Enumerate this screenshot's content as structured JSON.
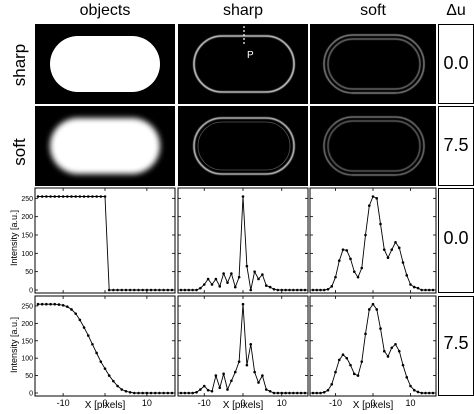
{
  "headers": {
    "objects": "objects",
    "sharp": "sharp",
    "soft": "soft",
    "delta_u": "Δu"
  },
  "row_labels": {
    "sharp": "sharp",
    "soft": "soft"
  },
  "image_marker": "P",
  "delta_u_values": [
    "0.0",
    "7.5",
    "0.0",
    "7.5"
  ],
  "axis": {
    "ylabel": "Intensity [a.u.]",
    "xlabel": "X [pixels]",
    "y_ticks": [
      "0",
      "50",
      "100",
      "150",
      "200",
      "250"
    ],
    "x_ticks": [
      "-10",
      "0",
      "10"
    ]
  },
  "chart_data": [
    {
      "type": "line",
      "panel": "objects-sharp-profile",
      "x": [
        -16,
        -15,
        -14,
        -13,
        -12,
        -11,
        -10,
        -9,
        -8,
        -7,
        -6,
        -5,
        -4,
        -3,
        -2,
        -1,
        0,
        1,
        2,
        3,
        4,
        5,
        6,
        7,
        8,
        9,
        10,
        11,
        12,
        13,
        14,
        15,
        16
      ],
      "y": [
        255,
        255,
        255,
        255,
        255,
        255,
        255,
        255,
        255,
        255,
        255,
        255,
        255,
        255,
        255,
        255,
        255,
        0,
        0,
        0,
        0,
        0,
        0,
        0,
        0,
        0,
        0,
        0,
        0,
        0,
        0,
        0,
        0
      ],
      "xlim": [
        -16,
        16
      ],
      "ylim": [
        0,
        270
      ]
    },
    {
      "type": "line",
      "panel": "objects-soft-profile",
      "x": [
        -16,
        -15,
        -14,
        -13,
        -12,
        -11,
        -10,
        -9,
        -8,
        -7,
        -6,
        -5,
        -4,
        -3,
        -2,
        -1,
        0,
        1,
        2,
        3,
        4,
        5,
        6,
        7,
        8,
        9,
        10,
        11,
        12,
        13,
        14,
        15,
        16
      ],
      "y": [
        255,
        255,
        255,
        255,
        255,
        254,
        252,
        248,
        240,
        228,
        210,
        188,
        165,
        140,
        115,
        90,
        70,
        50,
        34,
        20,
        10,
        5,
        2,
        0,
        0,
        0,
        0,
        0,
        0,
        0,
        0,
        0,
        0
      ],
      "xlim": [
        -16,
        16
      ],
      "ylim": [
        0,
        270
      ]
    },
    {
      "type": "line",
      "panel": "sharp-du0-profile",
      "x": [
        -16,
        -15,
        -14,
        -13,
        -12,
        -11,
        -10,
        -9,
        -8,
        -7,
        -6,
        -5,
        -4,
        -3,
        -2,
        -1,
        0,
        1,
        2,
        3,
        4,
        5,
        6,
        7,
        8,
        9,
        10,
        11,
        12,
        13,
        14,
        15,
        16
      ],
      "y": [
        0,
        0,
        0,
        0,
        0,
        5,
        15,
        30,
        15,
        30,
        10,
        45,
        20,
        45,
        8,
        35,
        255,
        65,
        0,
        50,
        30,
        42,
        12,
        8,
        2,
        0,
        0,
        0,
        0,
        0,
        0,
        0,
        0
      ],
      "xlim": [
        -16,
        16
      ],
      "ylim": [
        0,
        270
      ]
    },
    {
      "type": "line",
      "panel": "sharp-du7.5-profile",
      "x": [
        -16,
        -15,
        -14,
        -13,
        -12,
        -11,
        -10,
        -9,
        -8,
        -7,
        -6,
        -5,
        -4,
        -3,
        -2,
        -1,
        0,
        1,
        2,
        3,
        4,
        5,
        6,
        7,
        8,
        9,
        10,
        11,
        12,
        13,
        14,
        15,
        16
      ],
      "y": [
        0,
        0,
        0,
        0,
        2,
        10,
        20,
        8,
        5,
        50,
        15,
        55,
        10,
        35,
        60,
        90,
        255,
        80,
        140,
        60,
        30,
        50,
        10,
        5,
        0,
        0,
        0,
        0,
        0,
        0,
        0,
        0,
        0
      ],
      "xlim": [
        -16,
        16
      ],
      "ylim": [
        0,
        270
      ]
    },
    {
      "type": "line",
      "panel": "soft-du0-profile",
      "x": [
        -16,
        -15,
        -14,
        -13,
        -12,
        -11,
        -10,
        -9,
        -8,
        -7,
        -6,
        -5,
        -4,
        -3,
        -2,
        -1,
        0,
        1,
        2,
        3,
        4,
        5,
        6,
        7,
        8,
        9,
        10,
        11,
        12,
        13,
        14,
        15,
        16
      ],
      "y": [
        0,
        0,
        0,
        0,
        2,
        10,
        35,
        80,
        110,
        108,
        85,
        50,
        35,
        60,
        150,
        230,
        255,
        250,
        180,
        110,
        88,
        110,
        130,
        115,
        75,
        40,
        15,
        8,
        5,
        0,
        0,
        0,
        0
      ],
      "xlim": [
        -16,
        16
      ],
      "ylim": [
        0,
        270
      ]
    },
    {
      "type": "line",
      "panel": "soft-du7.5-profile",
      "x": [
        -16,
        -15,
        -14,
        -13,
        -12,
        -11,
        -10,
        -9,
        -8,
        -7,
        -6,
        -5,
        -4,
        -3,
        -2,
        -1,
        0,
        1,
        2,
        3,
        4,
        5,
        6,
        7,
        8,
        9,
        10,
        11,
        12,
        13,
        14,
        15,
        16
      ],
      "y": [
        0,
        0,
        0,
        2,
        8,
        25,
        60,
        95,
        110,
        100,
        80,
        55,
        50,
        90,
        170,
        240,
        255,
        240,
        185,
        120,
        105,
        130,
        140,
        120,
        80,
        45,
        20,
        8,
        3,
        0,
        0,
        0,
        0
      ],
      "xlim": [
        -16,
        16
      ],
      "ylim": [
        0,
        270
      ]
    }
  ]
}
